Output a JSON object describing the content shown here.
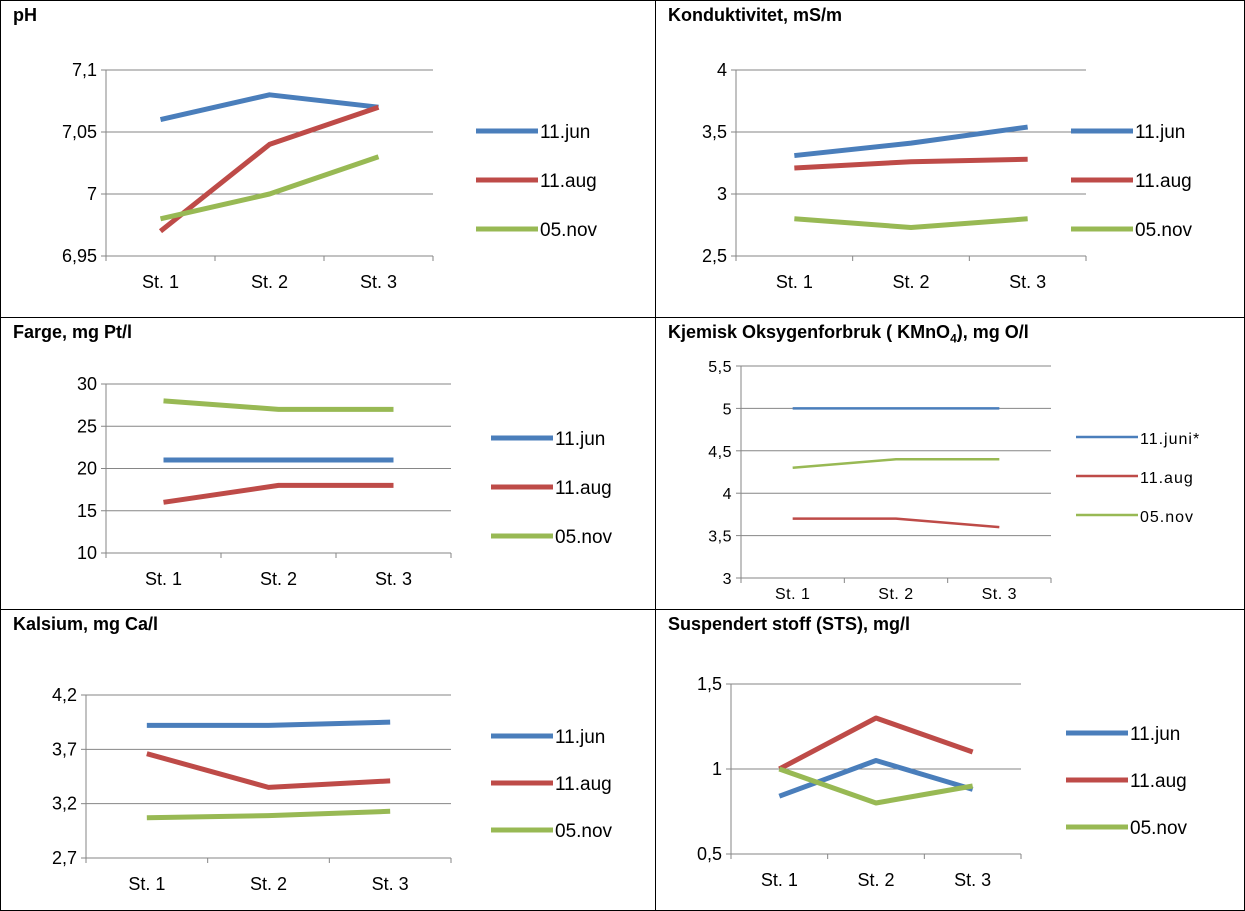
{
  "chart_data": [
    {
      "type": "line",
      "title": "pH",
      "categories": [
        "St. 1",
        "St. 2",
        "St. 3"
      ],
      "ylim": [
        6.95,
        7.1
      ],
      "yticks": [
        "6,95",
        "7",
        "7,05",
        "7,1"
      ],
      "series": [
        {
          "name": "11.jun",
          "color": "#4a7ebb",
          "values": [
            7.06,
            7.08,
            7.07
          ]
        },
        {
          "name": "11.aug",
          "color": "#be4b48",
          "values": [
            6.97,
            7.04,
            7.07
          ]
        },
        {
          "name": "05.nov",
          "color": "#98b954",
          "values": [
            6.98,
            7.0,
            7.03
          ]
        }
      ],
      "grid": true,
      "legend": "right"
    },
    {
      "type": "line",
      "title": "Konduktivitet, mS/m",
      "categories": [
        "St. 1",
        "St. 2",
        "St. 3"
      ],
      "ylim": [
        2.5,
        4
      ],
      "yticks": [
        "2,5",
        "3",
        "3,5",
        "4"
      ],
      "series": [
        {
          "name": "11.jun",
          "color": "#4a7ebb",
          "values": [
            3.31,
            3.41,
            3.54
          ]
        },
        {
          "name": "11.aug",
          "color": "#be4b48",
          "values": [
            3.21,
            3.26,
            3.28
          ]
        },
        {
          "name": "05.nov",
          "color": "#98b954",
          "values": [
            2.8,
            2.73,
            2.8
          ]
        }
      ],
      "grid": true,
      "legend": "right"
    },
    {
      "type": "line",
      "title": "Farge, mg Pt/l",
      "categories": [
        "St. 1",
        "St. 2",
        "St. 3"
      ],
      "ylim": [
        10,
        30
      ],
      "yticks": [
        "10",
        "15",
        "20",
        "25",
        "30"
      ],
      "series": [
        {
          "name": "11.jun",
          "color": "#4a7ebb",
          "values": [
            21,
            21,
            21
          ]
        },
        {
          "name": "11.aug",
          "color": "#be4b48",
          "values": [
            16,
            18,
            18
          ]
        },
        {
          "name": "05.nov",
          "color": "#98b954",
          "values": [
            28,
            27,
            27
          ]
        }
      ],
      "grid": true,
      "legend": "right"
    },
    {
      "type": "line",
      "title": "Kjemisk Oksygenforbruk ( KMnO",
      "title_sub": "4",
      "title_end": "), mg O/l",
      "categories": [
        "St. 1",
        "St. 2",
        "St. 3"
      ],
      "ylim": [
        3,
        5.5
      ],
      "yticks": [
        "3",
        "3,5",
        "4",
        "4,5",
        "5",
        "5,5"
      ],
      "series": [
        {
          "name": "11.juni*",
          "color": "#4a7ebb",
          "values": [
            5.0,
            5.0,
            5.0
          ]
        },
        {
          "name": "11.aug",
          "color": "#be4b48",
          "values": [
            3.7,
            3.7,
            3.6
          ]
        },
        {
          "name": "05.nov",
          "color": "#98b954",
          "values": [
            4.3,
            4.4,
            4.4
          ]
        }
      ],
      "grid": true,
      "legend": "right"
    },
    {
      "type": "line",
      "title": "Kalsium, mg Ca/l",
      "categories": [
        "St. 1",
        "St. 2",
        "St. 3"
      ],
      "ylim": [
        2.7,
        4.2
      ],
      "yticks": [
        "2,7",
        "3,2",
        "3,7",
        "4,2"
      ],
      "series": [
        {
          "name": "11.jun",
          "color": "#4a7ebb",
          "values": [
            3.92,
            3.92,
            3.95
          ]
        },
        {
          "name": "11.aug",
          "color": "#be4b48",
          "values": [
            3.66,
            3.35,
            3.41
          ]
        },
        {
          "name": "05.nov",
          "color": "#98b954",
          "values": [
            3.07,
            3.09,
            3.13
          ]
        }
      ],
      "grid": true,
      "legend": "right"
    },
    {
      "type": "line",
      "title": "Suspendert stoff (STS), mg/l",
      "categories": [
        "St. 1",
        "St. 2",
        "St. 3"
      ],
      "ylim": [
        0.5,
        1.5
      ],
      "yticks": [
        "0,5",
        "1",
        "1,5"
      ],
      "series": [
        {
          "name": "11.jun",
          "color": "#4a7ebb",
          "values": [
            0.84,
            1.05,
            0.88
          ]
        },
        {
          "name": "11.aug",
          "color": "#be4b48",
          "values": [
            1.0,
            1.3,
            1.1
          ]
        },
        {
          "name": "05.nov",
          "color": "#98b954",
          "values": [
            1.0,
            0.8,
            0.9
          ]
        }
      ],
      "grid": true,
      "legend": "right"
    }
  ]
}
